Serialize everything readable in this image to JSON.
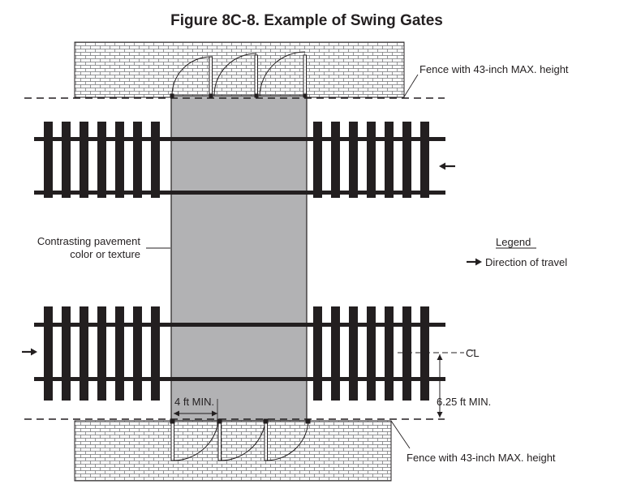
{
  "title": "Figure 8C-8.  Example of Swing Gates",
  "labels": {
    "fence_top": "Fence with 43-inch MAX. height",
    "fence_bottom": "Fence with 43-inch MAX. height",
    "pavement_line1": "Contrasting pavement",
    "pavement_line2": "color or texture",
    "dim_width": "4 ft MIN.",
    "dim_offset": "6.25 ft MIN.",
    "centerline": "CL"
  },
  "legend": {
    "heading": "Legend",
    "items": [
      {
        "icon": "right-arrow-icon",
        "text": "Direction of travel"
      }
    ]
  },
  "travel_arrows": [
    {
      "track": "upper",
      "direction": "left"
    },
    {
      "track": "lower",
      "direction": "right"
    }
  ],
  "colors": {
    "ink": "#231f20",
    "pavement": "#b2b2b4",
    "brick_fill": "#ffffff",
    "brick_line": "#6d6e71",
    "background": "#ffffff"
  }
}
